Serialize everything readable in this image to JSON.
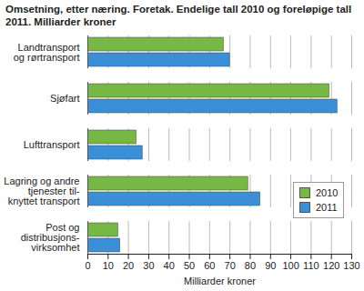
{
  "chart_data": {
    "type": "bar",
    "orientation": "horizontal",
    "title": "Omsetning, etter næring. Foretak. Endelige tall 2010 og foreløpige tall 2011. Milliarder kroner",
    "x_label": "Milliarder kroner",
    "categories": [
      "Landtransport\nog rørtransport",
      "Sjøfart",
      "Lufttransport",
      "Lagring og andre\ntjenester til-\nknyttet transport",
      "Post og\ndistribusjons-\nvirksomhet"
    ],
    "series": [
      {
        "name": "2010",
        "color": "#76b843",
        "values": [
          67,
          119,
          24,
          79,
          15
        ]
      },
      {
        "name": "2011",
        "color": "#3a8fd6",
        "values": [
          70,
          123,
          27,
          85,
          16
        ]
      }
    ],
    "xlim": [
      0,
      130
    ],
    "xticks": [
      0,
      10,
      20,
      30,
      40,
      50,
      60,
      70,
      80,
      90,
      100,
      110,
      120,
      130
    ],
    "grid": true,
    "legend": "bottom-right"
  }
}
